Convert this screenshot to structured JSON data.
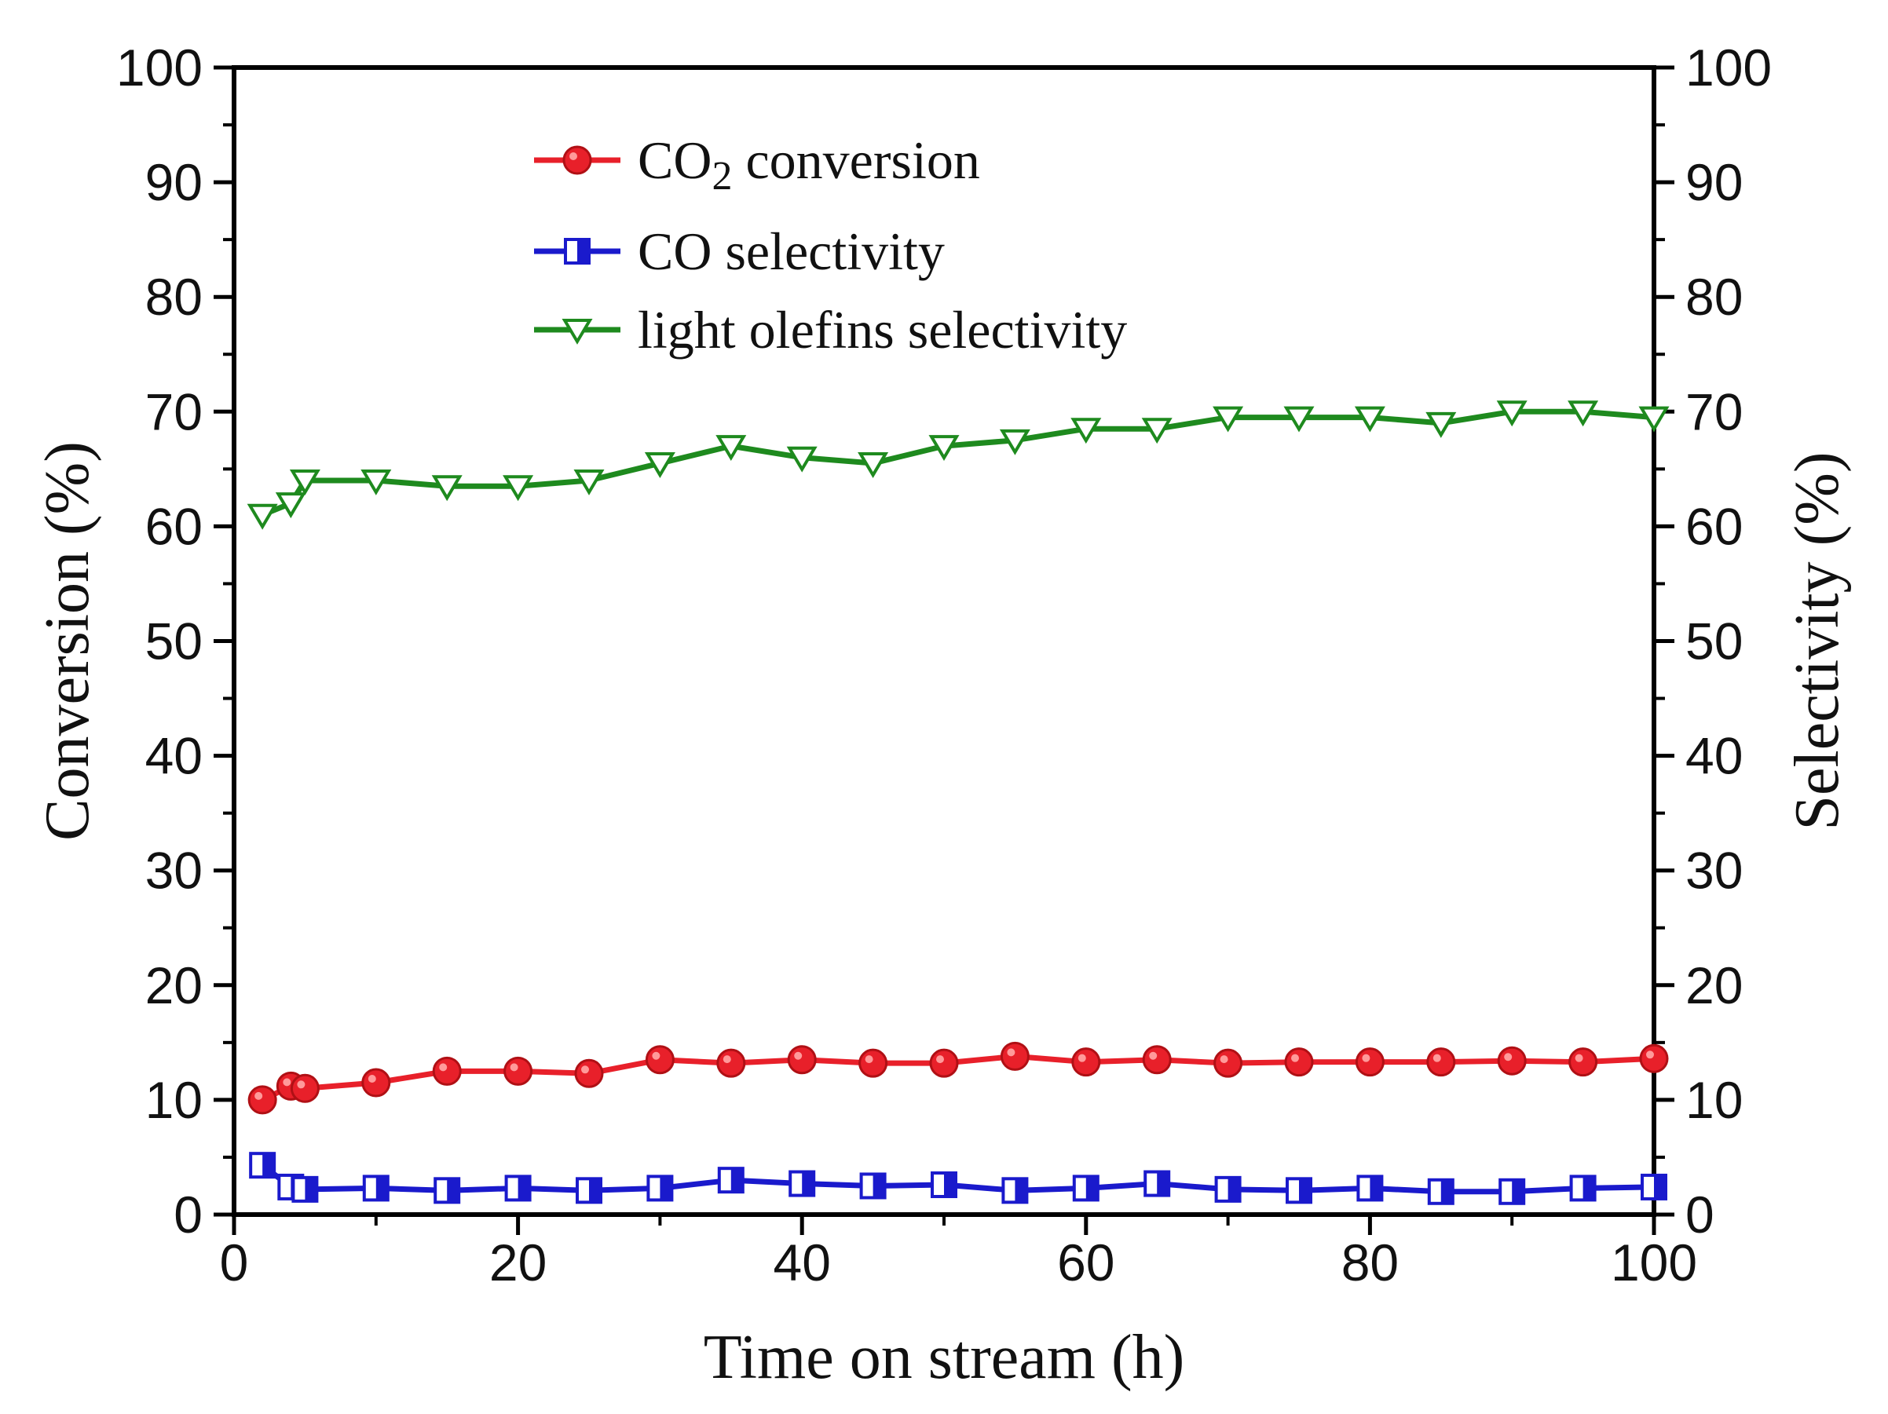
{
  "chart_data": {
    "type": "line",
    "x_axis": {
      "label": "Time on stream (h)",
      "range": [
        0,
        100
      ],
      "ticks": [
        0,
        20,
        40,
        60,
        80,
        100
      ]
    },
    "y_axis_left": {
      "label": "Conversion (%)",
      "range": [
        0,
        100
      ],
      "ticks": [
        0,
        10,
        20,
        30,
        40,
        50,
        60,
        70,
        80,
        90,
        100
      ]
    },
    "y_axis_right": {
      "label": "Selectivity (%)",
      "range": [
        0,
        100
      ],
      "ticks": [
        0,
        10,
        20,
        30,
        40,
        50,
        60,
        70,
        80,
        90,
        100
      ]
    },
    "grid": false,
    "legend_position": "top-center",
    "series": [
      {
        "name": "CO2 conversion",
        "legend_main": "CO",
        "legend_sub": "2",
        "legend_rest": " conversion",
        "axis": "left",
        "color": "#e8202a",
        "marker": "circle",
        "x": [
          2,
          4,
          5,
          10,
          15,
          20,
          25,
          30,
          35,
          40,
          45,
          50,
          55,
          60,
          65,
          70,
          75,
          80,
          85,
          90,
          95,
          100
        ],
        "y": [
          10.0,
          11.2,
          11.0,
          11.5,
          12.5,
          12.5,
          12.3,
          13.5,
          13.2,
          13.5,
          13.2,
          13.2,
          13.8,
          13.3,
          13.5,
          13.2,
          13.3,
          13.3,
          13.3,
          13.4,
          13.3,
          13.6
        ]
      },
      {
        "name": "CO selectivity",
        "axis": "right",
        "color": "#1a1acc",
        "marker": "square-half",
        "x": [
          2,
          4,
          5,
          10,
          15,
          20,
          25,
          30,
          35,
          40,
          45,
          50,
          55,
          60,
          65,
          70,
          75,
          80,
          85,
          90,
          95,
          100
        ],
        "y": [
          4.3,
          2.4,
          2.2,
          2.3,
          2.1,
          2.3,
          2.1,
          2.3,
          3.0,
          2.7,
          2.5,
          2.6,
          2.1,
          2.3,
          2.7,
          2.2,
          2.1,
          2.3,
          2.0,
          2.0,
          2.3,
          2.4
        ]
      },
      {
        "name": "light olefins selectivity",
        "axis": "right",
        "color": "#1e8a1e",
        "marker": "triangle-down",
        "x": [
          2,
          4,
          5,
          10,
          15,
          20,
          25,
          30,
          35,
          40,
          45,
          50,
          55,
          60,
          65,
          70,
          75,
          80,
          85,
          90,
          95,
          100
        ],
        "y": [
          61.0,
          62.0,
          64.0,
          64.0,
          63.5,
          63.5,
          64.0,
          65.5,
          67.0,
          66.0,
          65.5,
          67.0,
          67.5,
          68.5,
          68.5,
          69.5,
          69.5,
          69.5,
          69.0,
          70.0,
          70.0,
          69.5
        ]
      }
    ]
  }
}
